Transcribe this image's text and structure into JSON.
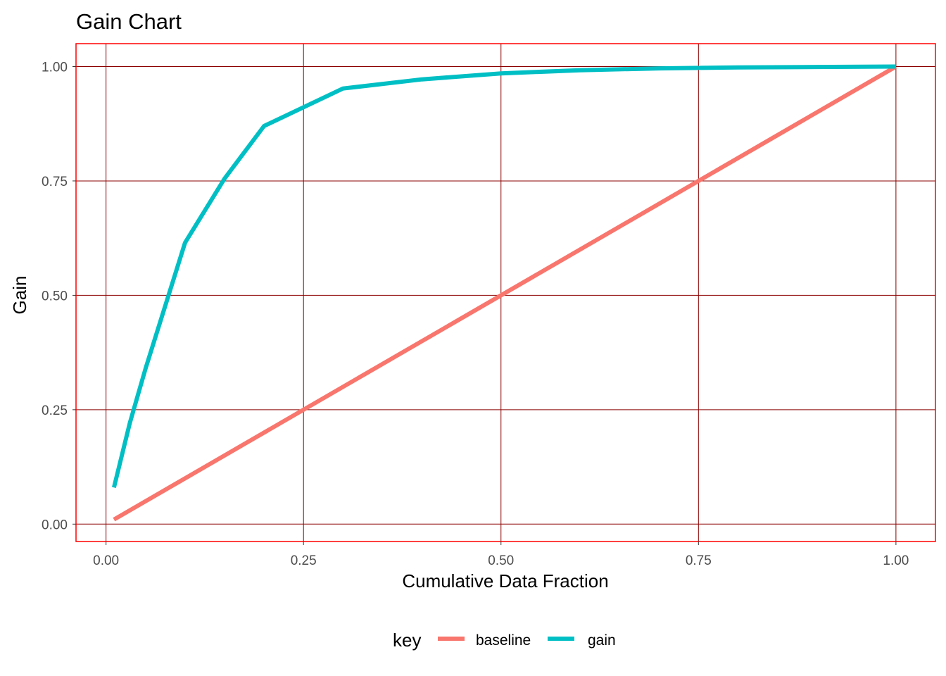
{
  "chart_data": {
    "type": "line",
    "title": "Gain Chart",
    "xlabel": "Cumulative Data Fraction",
    "ylabel": "Gain",
    "xlim": [
      -0.038,
      1.05
    ],
    "ylim": [
      -0.038,
      1.05
    ],
    "x_ticks": [
      0,
      0.25,
      0.5,
      0.75,
      1
    ],
    "x_tick_labels": [
      "0.00",
      "0.25",
      "0.50",
      "0.75",
      "1.00"
    ],
    "y_ticks": [
      0,
      0.25,
      0.5,
      0.75,
      1
    ],
    "y_tick_labels": [
      "0.00",
      "0.25",
      "0.50",
      "0.75",
      "1.00"
    ],
    "grid": true,
    "legend": {
      "title": "key",
      "position": "bottom"
    },
    "series": [
      {
        "name": "baseline",
        "color": "#F8766D",
        "x": [
          0.01,
          1.0
        ],
        "y": [
          0.01,
          1.0
        ]
      },
      {
        "name": "gain",
        "color": "#00BFC4",
        "x": [
          0.01,
          0.02,
          0.03,
          0.04,
          0.05,
          0.1,
          0.15,
          0.2,
          0.3,
          0.4,
          0.5,
          0.6,
          0.7,
          0.8,
          0.9,
          1.0
        ],
        "y": [
          0.08,
          0.15,
          0.22,
          0.28,
          0.34,
          0.615,
          0.755,
          0.87,
          0.952,
          0.972,
          0.985,
          0.992,
          0.996,
          0.998,
          0.999,
          1.0
        ]
      }
    ]
  }
}
